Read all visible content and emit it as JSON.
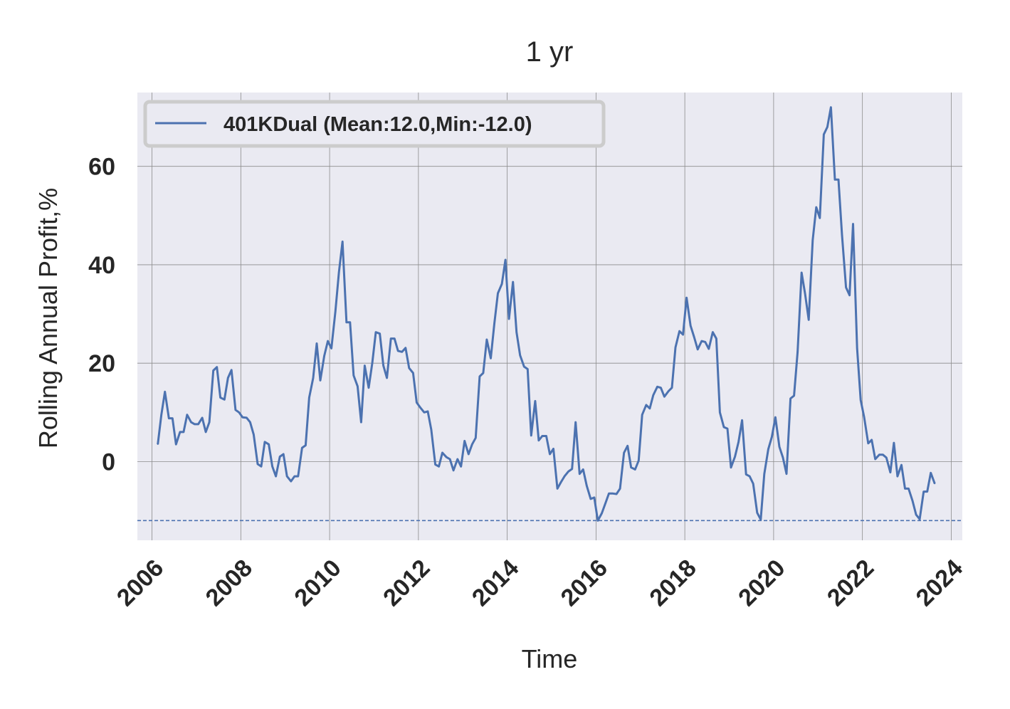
{
  "chart_data": {
    "type": "line",
    "title": "1 yr",
    "xlabel": "Time",
    "ylabel": "Rolling Annual Profit,%",
    "xlim": [
      2005.67,
      2024.25
    ],
    "ylim": [
      -16,
      75
    ],
    "x_ticks": [
      2006,
      2008,
      2010,
      2012,
      2014,
      2016,
      2018,
      2020,
      2022,
      2024
    ],
    "y_ticks": [
      0,
      20,
      40,
      60
    ],
    "grid": true,
    "legend_position": "top-left",
    "colors": {
      "background": "#eaeaf2",
      "grid": "#8c8c8c",
      "line": "#4c72b0"
    },
    "series": [
      {
        "name": "401KDual (Mean:12.0,Min:-12.0)",
        "x": [
          2006.13,
          2006.21,
          2006.29,
          2006.38,
          2006.46,
          2006.54,
          2006.63,
          2006.71,
          2006.79,
          2006.88,
          2006.96,
          2007.04,
          2007.13,
          2007.21,
          2007.29,
          2007.38,
          2007.46,
          2007.54,
          2007.63,
          2007.71,
          2007.79,
          2007.88,
          2007.96,
          2008.04,
          2008.13,
          2008.21,
          2008.29,
          2008.38,
          2008.46,
          2008.54,
          2008.63,
          2008.71,
          2008.79,
          2008.88,
          2008.96,
          2009.04,
          2009.13,
          2009.21,
          2009.29,
          2009.38,
          2009.46,
          2009.54,
          2009.63,
          2009.71,
          2009.79,
          2009.88,
          2009.96,
          2010.04,
          2010.13,
          2010.21,
          2010.29,
          2010.38,
          2010.46,
          2010.54,
          2010.63,
          2010.71,
          2010.79,
          2010.88,
          2010.96,
          2011.04,
          2011.13,
          2011.21,
          2011.29,
          2011.38,
          2011.46,
          2011.54,
          2011.63,
          2011.71,
          2011.79,
          2011.88,
          2011.96,
          2012.04,
          2012.13,
          2012.21,
          2012.29,
          2012.38,
          2012.46,
          2012.54,
          2012.63,
          2012.71,
          2012.79,
          2012.88,
          2012.96,
          2013.04,
          2013.13,
          2013.21,
          2013.29,
          2013.38,
          2013.46,
          2013.54,
          2013.63,
          2013.71,
          2013.79,
          2013.88,
          2013.96,
          2014.04,
          2014.13,
          2014.21,
          2014.29,
          2014.38,
          2014.46,
          2014.54,
          2014.63,
          2014.71,
          2014.79,
          2014.88,
          2014.96,
          2015.04,
          2015.13,
          2015.21,
          2015.29,
          2015.38,
          2015.46,
          2015.54,
          2015.63,
          2015.71,
          2015.79,
          2015.88,
          2015.96,
          2016.04,
          2016.13,
          2016.21,
          2016.29,
          2016.38,
          2016.46,
          2016.54,
          2016.63,
          2016.71,
          2016.79,
          2016.88,
          2016.96,
          2017.04,
          2017.13,
          2017.21,
          2017.29,
          2017.38,
          2017.46,
          2017.54,
          2017.63,
          2017.71,
          2017.79,
          2017.88,
          2017.96,
          2018.04,
          2018.13,
          2018.21,
          2018.29,
          2018.38,
          2018.46,
          2018.54,
          2018.63,
          2018.71,
          2018.79,
          2018.88,
          2018.96,
          2019.04,
          2019.13,
          2019.21,
          2019.29,
          2019.38,
          2019.46,
          2019.54,
          2019.63,
          2019.71,
          2019.79,
          2019.88,
          2019.96,
          2020.04,
          2020.13,
          2020.21,
          2020.29,
          2020.38,
          2020.46,
          2020.54,
          2020.63,
          2020.71,
          2020.79,
          2020.88,
          2020.96,
          2021.04,
          2021.13,
          2021.21,
          2021.29,
          2021.38,
          2021.46,
          2021.54,
          2021.63,
          2021.71,
          2021.79,
          2021.88,
          2021.96,
          2022.04,
          2022.13,
          2022.21,
          2022.29,
          2022.38,
          2022.46,
          2022.54,
          2022.63,
          2022.71,
          2022.79,
          2022.88,
          2022.96,
          2023.04,
          2023.13,
          2023.21,
          2023.29,
          2023.38,
          2023.46,
          2023.54,
          2023.63
        ],
        "values": [
          3.5,
          9.5,
          14.2,
          8.8,
          8.8,
          3.5,
          6.0,
          6.0,
          9.5,
          8.0,
          7.6,
          7.6,
          8.9,
          6.0,
          8.0,
          18.5,
          19.2,
          13.0,
          12.6,
          17.0,
          18.6,
          10.5,
          10.0,
          9.0,
          8.9,
          8.0,
          5.5,
          -0.5,
          -1.0,
          4.0,
          3.5,
          -1.0,
          -3.0,
          1.0,
          1.5,
          -3.0,
          -4.0,
          -3.0,
          -3.0,
          2.8,
          3.3,
          13.0,
          17.0,
          24.0,
          16.5,
          21.5,
          24.5,
          23.0,
          30.5,
          38.5,
          44.7,
          28.3,
          28.3,
          17.5,
          15.3,
          8.0,
          19.5,
          15.0,
          20.0,
          26.3,
          26.0,
          19.5,
          17.0,
          25.0,
          25.0,
          22.5,
          22.3,
          23.1,
          19.0,
          18.0,
          12.0,
          11.0,
          10.0,
          10.2,
          6.5,
          -0.6,
          -1.0,
          1.8,
          0.9,
          0.5,
          -1.8,
          0.5,
          -1.0,
          4.2,
          1.5,
          3.5,
          4.8,
          17.3,
          18.0,
          24.8,
          21.0,
          28.0,
          34.2,
          36.1,
          41.0,
          29.0,
          36.5,
          26.3,
          21.6,
          19.3,
          18.8,
          5.3,
          12.3,
          4.3,
          5.2,
          5.2,
          1.5,
          2.6,
          -5.5,
          -4.2,
          -3.0,
          -2.0,
          -1.5,
          8.0,
          -2.5,
          -1.6,
          -4.9,
          -7.6,
          -7.3,
          -12.0,
          -10.5,
          -8.5,
          -6.5,
          -6.5,
          -6.6,
          -5.5,
          1.8,
          3.2,
          -1.2,
          -1.6,
          0.2,
          9.5,
          11.5,
          10.8,
          13.5,
          15.2,
          15.0,
          13.2,
          14.3,
          15.0,
          23.2,
          26.5,
          25.8,
          33.3,
          27.6,
          25.3,
          22.8,
          24.5,
          24.3,
          22.9,
          26.3,
          25.0,
          10.0,
          7.0,
          6.7,
          -1.2,
          1.0,
          4.0,
          8.4,
          -2.6,
          -3.0,
          -4.5,
          -10.4,
          -11.8,
          -2.5,
          2.5,
          5.0,
          9.0,
          3.0,
          0.8,
          -2.5,
          12.8,
          13.4,
          22.3,
          38.4,
          34.0,
          28.8,
          45.0,
          51.7,
          49.5,
          66.5,
          68.0,
          72.0,
          57.3,
          57.3,
          46.0,
          35.4,
          33.8,
          48.3,
          23.0,
          12.5,
          9.0,
          3.7,
          4.4,
          0.5,
          1.4,
          1.4,
          0.8,
          -2.2,
          3.8,
          -3.0,
          -0.7,
          -5.5,
          -5.5,
          -8.0,
          -10.8,
          -11.7,
          -6.1,
          -6.1,
          -2.3,
          -4.5
        ]
      }
    ],
    "reference_line": {
      "value": -12.0,
      "style": "dashed"
    }
  }
}
